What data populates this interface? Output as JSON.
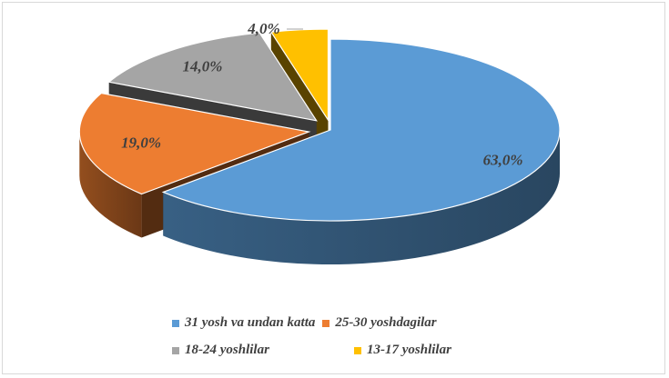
{
  "chart_data": {
    "type": "pie",
    "title": "",
    "exploded": true,
    "three_d": true,
    "legend_position": "bottom",
    "slices": [
      {
        "label": "31 yosh va undan katta",
        "value": 63.0,
        "value_label": "63,0%",
        "color": "#5b9bd5"
      },
      {
        "label": "25-30 yoshdagilar",
        "value": 19.0,
        "value_label": "19,0%",
        "color": "#ed7d31"
      },
      {
        "label": "18-24 yoshlilar",
        "value": 14.0,
        "value_label": "14,0%",
        "color": "#a5a5a5"
      },
      {
        "label": "13-17 yoshlilar",
        "value": 4.0,
        "value_label": "4,0%",
        "color": "#ffc000"
      }
    ]
  }
}
